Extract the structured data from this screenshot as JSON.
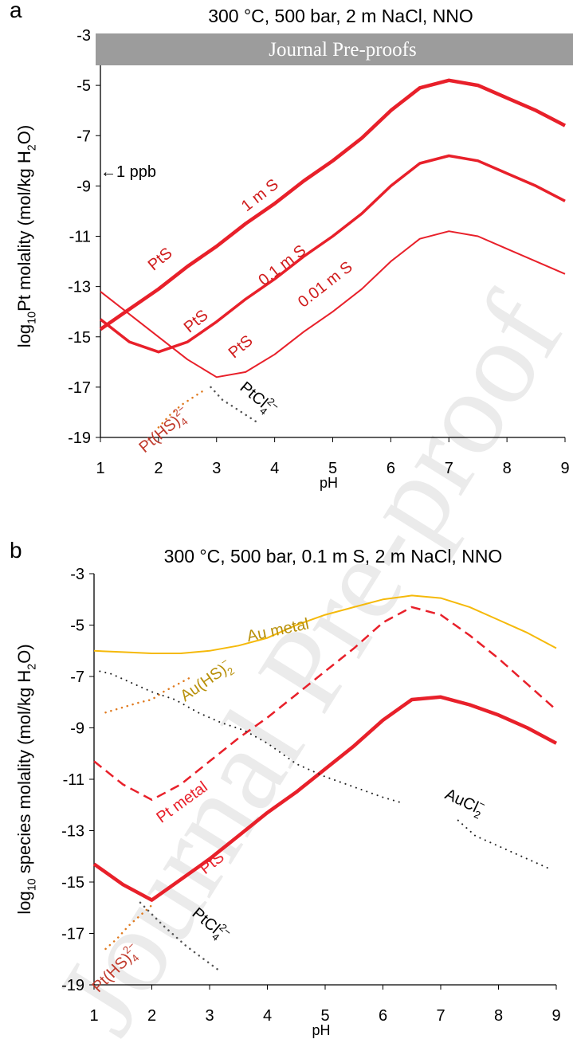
{
  "banner": "Journal Pre-proofs",
  "watermark": "Journal Pre-proof",
  "chart_data": [
    {
      "type": "line",
      "panel": "a",
      "title": "300 °C, 500 bar, 2 m NaCl, NNO",
      "xlabel": "pH",
      "ylabel": [
        "log",
        "10",
        "Pt molality (mol/kg H",
        "2",
        "O)"
      ],
      "xlim": [
        1,
        9
      ],
      "ylim": [
        -19,
        -3
      ],
      "xticks": [
        1,
        2,
        3,
        4,
        5,
        6,
        7,
        8,
        9
      ],
      "yticks": [
        -19,
        -17,
        -15,
        -13,
        -11,
        -9,
        -7,
        -5,
        -3
      ],
      "x": [
        1,
        1.5,
        2,
        2.5,
        3,
        3.5,
        4,
        4.5,
        5,
        5.5,
        6,
        6.5,
        7,
        7.5,
        8,
        8.5,
        9
      ],
      "series": [
        {
          "name": "1 m S",
          "color": "#e8202a",
          "style": "solid",
          "values": [
            -14.7,
            -13.9,
            -13.1,
            -12.2,
            -11.4,
            -10.5,
            -9.7,
            -8.8,
            -8.0,
            -7.1,
            -6.0,
            -5.1,
            -4.8,
            -5.0,
            -5.5,
            -6.0,
            -6.6
          ]
        },
        {
          "name": "0.1 m S",
          "color": "#e8202a",
          "style": "solid",
          "values": [
            -14.3,
            -15.2,
            -15.6,
            -15.2,
            -14.4,
            -13.5,
            -12.7,
            -11.8,
            -11.0,
            -10.1,
            -9.0,
            -8.1,
            -7.8,
            -8.0,
            -8.5,
            -9.0,
            -9.6
          ]
        },
        {
          "name": "0.01 m S",
          "color": "#e8202a",
          "style": "solid",
          "values": [
            -13.2,
            -14.1,
            -15.0,
            -15.9,
            -16.6,
            -16.4,
            -15.7,
            -14.8,
            -14.0,
            -13.1,
            -12.0,
            -11.1,
            -10.8,
            -11.0,
            -11.5,
            -12.0,
            -12.5
          ]
        },
        {
          "color": "#e07b20",
          "style": "dotted",
          "x": [
            2.0,
            2.2,
            2.4,
            2.6,
            2.8
          ],
          "values": [
            -18.6,
            -18.1,
            -17.7,
            -17.4,
            -17.1
          ]
        },
        {
          "color": "#555555",
          "style": "dotted",
          "x": [
            2.9,
            3.1,
            3.3,
            3.5,
            3.7
          ],
          "values": [
            -17.0,
            -17.5,
            -17.8,
            -18.1,
            -18.4
          ]
        }
      ],
      "annotations": [
        {
          "text": [
            "←1 ppb"
          ],
          "color": "#000000"
        },
        {
          "text": [
            "PtS"
          ],
          "color": "#d01c1c"
        },
        {
          "text": [
            "PtS"
          ],
          "color": "#d01c1c"
        },
        {
          "text": [
            "PtS"
          ],
          "color": "#d01c1c"
        },
        {
          "text": [
            "Pt(HS)",
            "4",
            "2−"
          ],
          "color": "#c0392b"
        },
        {
          "text": [
            "PtCl",
            "4",
            "2−"
          ],
          "color": "#000000"
        }
      ]
    },
    {
      "type": "line",
      "panel": "b",
      "title": "300 °C, 500 bar, 0.1 m S, 2 m NaCl, NNO",
      "xlabel": "pH",
      "ylabel": [
        "log",
        "10",
        " species molality (mol/kg H",
        "2",
        "O)"
      ],
      "xlim": [
        1,
        9
      ],
      "ylim": [
        -19,
        -3
      ],
      "xticks": [
        1,
        2,
        3,
        4,
        5,
        6,
        7,
        8,
        9
      ],
      "yticks": [
        -19,
        -17,
        -15,
        -13,
        -11,
        -9,
        -7,
        -5,
        -3
      ],
      "x": [
        1,
        1.5,
        2,
        2.5,
        3,
        3.5,
        4,
        4.5,
        5,
        5.5,
        6,
        6.5,
        7,
        7.5,
        8,
        8.5,
        9
      ],
      "series": [
        {
          "name": "Au metal",
          "color": "#f5b90a",
          "style": "solid",
          "values": [
            -6.0,
            -6.05,
            -6.1,
            -6.1,
            -6.0,
            -5.8,
            -5.5,
            -5.0,
            -4.6,
            -4.3,
            -4.0,
            -3.85,
            -3.95,
            -4.3,
            -4.8,
            -5.3,
            -5.9
          ]
        },
        {
          "name": "Pt metal",
          "color": "#e8202a",
          "style": "dashed",
          "values": [
            -10.3,
            -11.2,
            -11.8,
            -11.2,
            -10.3,
            -9.4,
            -8.6,
            -7.7,
            -6.8,
            -5.9,
            -4.9,
            -4.3,
            -4.6,
            -5.4,
            -6.3,
            -7.3,
            -8.3
          ]
        },
        {
          "name": "PtS",
          "color": "#e8202a",
          "style": "solid",
          "values": [
            -14.3,
            -15.1,
            -15.7,
            -14.9,
            -14.1,
            -13.2,
            -12.3,
            -11.5,
            -10.6,
            -9.7,
            -8.7,
            -7.9,
            -7.8,
            -8.1,
            -8.5,
            -9.0,
            -9.6
          ]
        },
        {
          "color": "#e07b20",
          "style": "dotted",
          "x": [
            1.2,
            1.8,
            2.0,
            2.2,
            2.7
          ],
          "values": [
            -8.4,
            -8.0,
            -7.9,
            -7.6,
            -7.0
          ]
        },
        {
          "color": "#222222",
          "style": "dotted",
          "x": [
            1.1,
            1.3,
            1.7,
            2.0,
            2.4,
            2.8,
            3.2,
            3.6,
            4.0,
            4.5,
            5.0,
            5.5,
            6.0,
            6.3,
            7.0,
            7.3,
            7.6,
            8.1,
            8.9
          ],
          "values": [
            -6.8,
            -6.9,
            -7.3,
            -7.6,
            -7.9,
            -8.4,
            -8.8,
            -9.1,
            -9.6,
            -10.4,
            -10.9,
            -11.3,
            -11.7,
            -11.9,
            null,
            -12.6,
            -13.2,
            -13.7,
            -14.5
          ]
        },
        {
          "color": "#e07b20",
          "style": "dotted",
          "x": [
            1.2,
            1.4,
            1.6,
            1.8,
            2.0
          ],
          "values": [
            -17.6,
            -17.2,
            -16.7,
            -16.3,
            -15.9
          ]
        },
        {
          "color": "#555555",
          "style": "dotted",
          "x": [
            1.8,
            2.2,
            2.6,
            2.9,
            3.2
          ],
          "values": [
            -15.8,
            -16.7,
            -17.5,
            -18.0,
            -18.5
          ]
        }
      ],
      "annotations": [
        {
          "text": [
            "Au(HS)",
            "2",
            "−"
          ],
          "color": "#b8900a"
        },
        {
          "text": [
            "AuCl",
            "2",
            "−"
          ],
          "color": "#000000"
        },
        {
          "text": [
            "Pt(HS)",
            "4",
            "2−"
          ],
          "color": "#c0392b"
        },
        {
          "text": [
            "PtCl",
            "4",
            "2−"
          ],
          "color": "#000000"
        }
      ]
    }
  ]
}
